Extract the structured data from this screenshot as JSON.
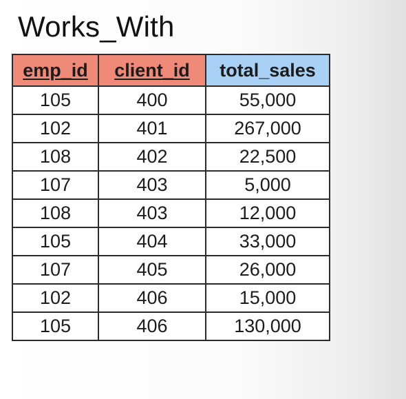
{
  "title": "Works_With",
  "table": {
    "columns": [
      {
        "label": "emp_id",
        "key_type": "primary",
        "color": "#f08a78"
      },
      {
        "label": "client_id",
        "key_type": "primary",
        "color": "#f08a78"
      },
      {
        "label": "total_sales",
        "key_type": "attribute",
        "color": "#a9d0f5"
      }
    ],
    "rows": [
      [
        "105",
        "400",
        "55,000"
      ],
      [
        "102",
        "401",
        "267,000"
      ],
      [
        "108",
        "402",
        "22,500"
      ],
      [
        "107",
        "403",
        "5,000"
      ],
      [
        "108",
        "403",
        "12,000"
      ],
      [
        "105",
        "404",
        "33,000"
      ],
      [
        "107",
        "405",
        "26,000"
      ],
      [
        "102",
        "406",
        "15,000"
      ],
      [
        "105",
        "406",
        "130,000"
      ]
    ]
  }
}
